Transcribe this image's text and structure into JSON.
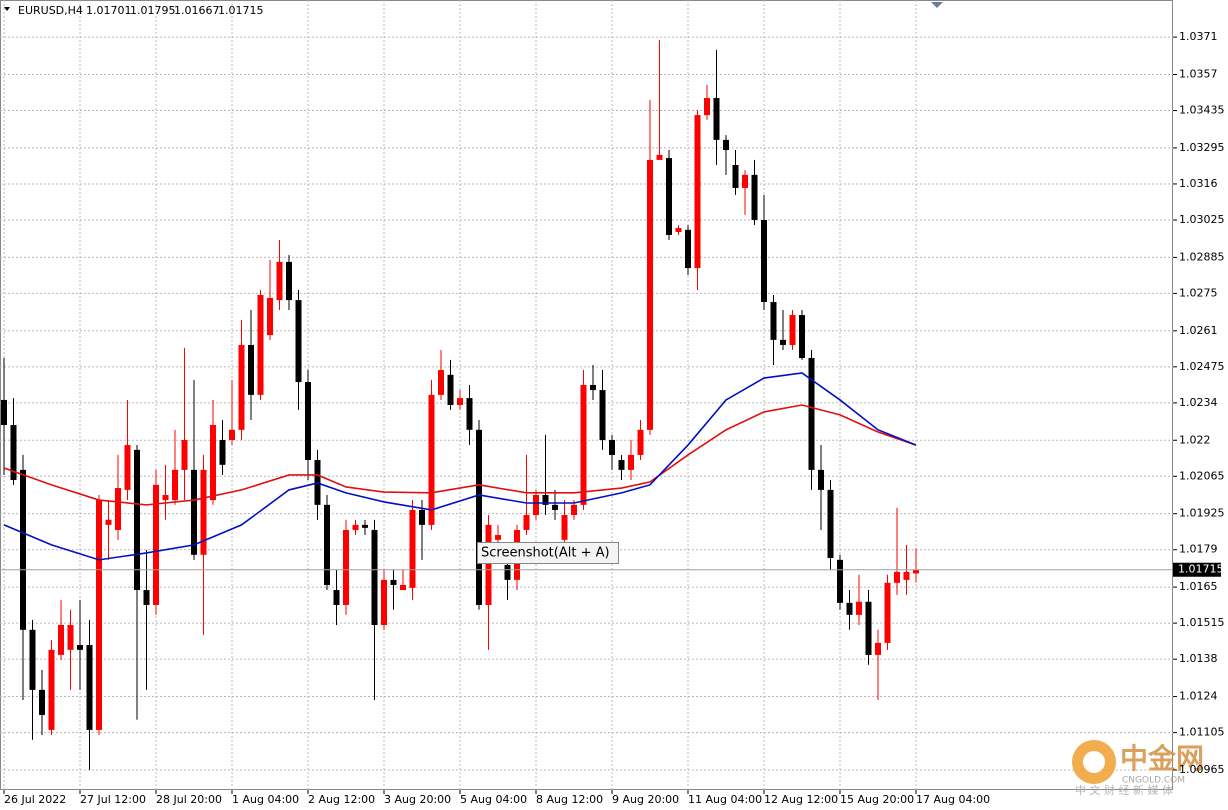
{
  "chart_data": {
    "type": "candlestick",
    "title": "EURUSD,H4",
    "annotation": "Screenshot(Alt + A)",
    "ylim": [
      1.0089,
      1.03849
    ],
    "yticks": [
      1.0371,
      1.0357,
      1.03435,
      1.03295,
      1.0316,
      1.03025,
      1.02885,
      1.0275,
      1.0261,
      1.02475,
      1.0234,
      1.022,
      1.02065,
      1.01925,
      1.0179,
      1.0165,
      1.01515,
      1.0138,
      1.0124,
      1.01105,
      1.00965
    ],
    "xticks": [
      {
        "value": 0,
        "label": "26 Jul 2022"
      },
      {
        "value": 8,
        "label": "27 Jul 12:00"
      },
      {
        "value": 16,
        "label": "28 Jul 20:00"
      },
      {
        "value": 24,
        "label": "1 Aug 04:00"
      },
      {
        "value": 32,
        "label": "2 Aug 12:00"
      },
      {
        "value": 40,
        "label": "3 Aug 20:00"
      },
      {
        "value": 48,
        "label": "5 Aug 04:00"
      },
      {
        "value": 56,
        "label": "8 Aug 12:00"
      },
      {
        "value": 64,
        "label": "9 Aug 20:00"
      },
      {
        "value": 72,
        "label": "11 Aug 04:00"
      },
      {
        "value": 80,
        "label": "12 Aug 12:00"
      },
      {
        "value": 88,
        "label": "15 Aug 20:00"
      },
      {
        "value": 96,
        "label": "17 Aug 04:00"
      }
    ],
    "grid": true,
    "up_color": "#ff0000",
    "down_color": "#000000",
    "open": [
      1.02351,
      1.02257,
      1.02089,
      1.0149,
      1.01265,
      1.01115,
      1.01396,
      1.01415,
      1.01433,
      1.01433,
      1.01115,
      1.01883,
      1.01864,
      1.02014,
      1.02164,
      1.01639,
      1.01583,
      1.01976,
      1.01976,
      1.02089,
      1.02089,
      1.01771,
      1.01976,
      1.02201,
      1.02201,
      1.02239,
      1.02557,
      1.0237,
      1.02594,
      1.02725,
      1.02868,
      1.02725,
      1.02418,
      1.02126,
      1.01958,
      1.01639,
      1.01583,
      1.01864,
      1.01883,
      1.01864,
      1.01508,
      1.01677,
      1.01639,
      1.01647,
      1.01939,
      1.01883,
      1.0237,
      1.02445,
      1.02332,
      1.02358,
      1.02239,
      1.01583,
      1.01827,
      1.01733,
      1.01677,
      1.01864,
      1.0192,
      1.01995,
      1.01958,
      1.01827,
      1.0192,
      1.01958,
      1.02407,
      1.02388,
      1.02201,
      1.02126,
      1.02089,
      1.02145,
      1.02239,
      1.0325,
      1.03257,
      1.0298,
      1.02988,
      1.02845,
      1.03418,
      1.03482,
      1.03325,
      1.03231,
      1.03145,
      1.03194,
      1.03025,
      1.02718,
      1.02576,
      1.02557,
      1.02669,
      1.02508,
      1.02089,
      1.02014,
      1.01752,
      1.01591,
      1.01546,
      1.01595,
      1.01396,
      1.01441,
      1.01666,
      1.01677,
      1.01701
    ],
    "high": [
      1.02508,
      1.02358,
      1.02145,
      1.01527,
      1.0134,
      1.01452,
      1.01602,
      1.01565,
      1.01602,
      1.01527,
      1.01995,
      1.01976,
      1.02145,
      1.02351,
      1.02182,
      1.01789,
      1.02089,
      1.02108,
      1.02239,
      1.02546,
      1.02426,
      1.02145,
      1.02351,
      1.02276,
      1.02426,
      1.02651,
      1.02688,
      1.02763,
      1.02875,
      1.0295,
      1.02894,
      1.02763,
      1.02463,
      1.02164,
      1.01995,
      1.01714,
      1.01902,
      1.01902,
      1.01902,
      1.01902,
      1.01714,
      1.01714,
      1.01714,
      1.01976,
      1.01976,
      1.02426,
      1.02538,
      1.02501,
      1.02388,
      1.02407,
      1.02276,
      1.0192,
      1.01883,
      1.01789,
      1.01883,
      1.02145,
      1.02014,
      1.0222,
      1.02014,
      1.01976,
      1.01976,
      1.02463,
      1.02482,
      1.02463,
      1.0222,
      1.02145,
      1.02201,
      1.02276,
      1.03474,
      1.03699,
      1.03287,
      1.03006,
      1.03006,
      1.03437,
      1.03531,
      1.03662,
      1.03343,
      1.03287,
      1.03212,
      1.0325,
      1.03119,
      1.02744,
      1.02688,
      1.02688,
      1.02688,
      1.02538,
      1.02182,
      1.02051,
      1.01771,
      1.01639,
      1.01696,
      1.01639,
      1.0149,
      1.01696,
      1.01947,
      1.01808,
      1.01795
    ],
    "low": [
      1.0207,
      1.02033,
      1.01227,
      1.01078,
      1.01096,
      1.01096,
      1.01377,
      1.01265,
      1.01265,
      1.00965,
      1.01096,
      1.01752,
      1.01827,
      1.01976,
      1.01153,
      1.01265,
      1.01546,
      1.01902,
      1.01958,
      1.01976,
      1.01752,
      1.01471,
      1.01958,
      1.0207,
      1.02182,
      1.02201,
      1.02276,
      1.02351,
      1.02576,
      1.02688,
      1.02688,
      1.02314,
      1.02051,
      1.01902,
      1.01639,
      1.01508,
      1.01546,
      1.01845,
      1.01845,
      1.01227,
      1.0149,
      1.01565,
      1.01639,
      1.01602,
      1.01752,
      1.01864,
      1.02351,
      1.02314,
      1.02314,
      1.02182,
      1.01565,
      1.01415,
      1.01752,
      1.01602,
      1.01639,
      1.01845,
      1.01902,
      1.0192,
      1.01902,
      1.01808,
      1.01902,
      1.01939,
      1.02351,
      1.02164,
      1.02089,
      1.02051,
      1.02051,
      1.02126,
      1.0222,
      1.0325,
      1.0295,
      1.02969,
      1.02819,
      1.02763,
      1.034,
      1.03231,
      1.03194,
      1.03119,
      1.03044,
      1.03006,
      1.02688,
      1.02482,
      1.02538,
      1.02538,
      1.02501,
      1.02014,
      1.01864,
      1.01714,
      1.01565,
      1.0149,
      1.01508,
      1.01359,
      1.01227,
      1.01415,
      1.01621,
      1.01621,
      1.01667
    ],
    "close": [
      1.02257,
      1.02051,
      1.0149,
      1.01265,
      1.01171,
      1.01415,
      1.01508,
      1.01508,
      1.01415,
      1.01115,
      1.01976,
      1.01902,
      1.02021,
      1.02182,
      1.01639,
      1.01583,
      1.02033,
      1.01995,
      1.02089,
      1.02201,
      1.01771,
      1.02089,
      1.02257,
      1.02108,
      1.02239,
      1.02557,
      1.0237,
      1.02744,
      1.02733,
      1.02868,
      1.02725,
      1.02418,
      1.02126,
      1.01958,
      1.01658,
      1.01583,
      1.01864,
      1.01883,
      1.01872,
      1.01508,
      1.01677,
      1.01658,
      1.01658,
      1.01939,
      1.01883,
      1.0237,
      1.02463,
      1.02332,
      1.02358,
      1.02239,
      1.01583,
      1.01883,
      1.01845,
      1.01677,
      1.01864,
      1.0192,
      1.01995,
      1.01958,
      1.01939,
      1.0192,
      1.01958,
      1.02407,
      1.02388,
      1.02201,
      1.02145,
      1.02089,
      1.02145,
      1.02239,
      1.0325,
      1.03269,
      1.02969,
      1.02995,
      1.02845,
      1.03418,
      1.03482,
      1.03325,
      1.03287,
      1.03145,
      1.03194,
      1.03025,
      1.02718,
      1.02576,
      1.02557,
      1.02669,
      1.02508,
      1.02089,
      1.02014,
      1.01759,
      1.01591,
      1.01546,
      1.01595,
      1.01396,
      1.01441,
      1.01666,
      1.01707,
      1.01707,
      1.01715
    ],
    "series": [
      {
        "color": "#e01010",
        "x": [
          0,
          5,
          10,
          15,
          20,
          25,
          30,
          33,
          36,
          40,
          45,
          50,
          55,
          60,
          65,
          68,
          72,
          76,
          80,
          84,
          88,
          92,
          96
        ],
        "values": [
          1.02096,
          1.02033,
          1.01976,
          1.01958,
          1.01976,
          1.02014,
          1.0207,
          1.0207,
          1.02025,
          1.02006,
          1.02003,
          1.02033,
          1.02003,
          1.02003,
          1.02021,
          1.02044,
          1.02145,
          1.02239,
          1.02306,
          1.02332,
          1.02295,
          1.02231,
          1.02182
        ]
      },
      {
        "color": "#0010c0",
        "x": [
          0,
          5,
          10,
          15,
          20,
          25,
          30,
          33,
          36,
          40,
          45,
          50,
          55,
          60,
          65,
          68,
          72,
          76,
          80,
          84,
          88,
          92,
          96
        ],
        "values": [
          1.01883,
          1.01808,
          1.01752,
          1.01778,
          1.01808,
          1.01883,
          1.02014,
          1.0204,
          1.02003,
          1.01969,
          1.01939,
          1.01995,
          1.01965,
          1.01965,
          1.02003,
          1.02033,
          1.02182,
          1.02351,
          1.02433,
          1.02452,
          1.02351,
          1.02239,
          1.02182
        ]
      }
    ]
  },
  "watermark": {
    "brand": "中金网",
    "site": "CNGOLD.COM",
    "slogan": "中 文 财 经 新 媒 体"
  }
}
